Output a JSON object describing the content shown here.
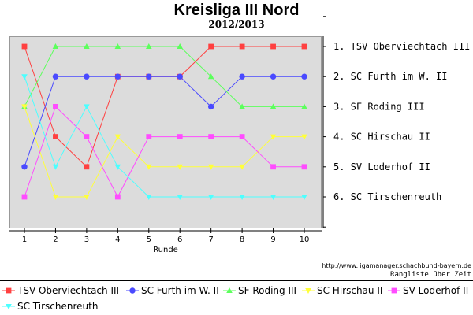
{
  "header": {
    "title": "Kreisliga III Nord",
    "subtitle": "2012/2013"
  },
  "footer": {
    "credit": "http://www.ligamanager.schachbund-bayern.de",
    "caption": "Rangliste über Zeit"
  },
  "colors": {
    "TSV Oberviechtach III": "#ff4040",
    "SC Furth im W. II": "#4a4aff",
    "SF Roding III": "#5cff5c",
    "SC Hirschau II": "#ffff3a",
    "SV Loderhof II": "#ff4cff",
    "SC Tirschenreuth": "#4cffff"
  },
  "chart_data": {
    "type": "line",
    "title": "Kreisliga III Nord",
    "subtitle": "2012/2013",
    "xlabel": "Runde",
    "ylabel": "",
    "x": [
      1,
      2,
      3,
      4,
      5,
      6,
      7,
      8,
      9,
      10
    ],
    "ylim": [
      7,
      0
    ],
    "y_inverted": true,
    "y_tick_labels": [
      "1. TSV Oberviechtach III",
      "2. SC Furth im W. II",
      "3. SF Roding III",
      "4. SC Hirschau II",
      "5. SV Loderhof II",
      "6. SC Tirschenreuth"
    ],
    "grid": false,
    "legend_position": "bottom",
    "series": [
      {
        "name": "TSV Oberviechtach III",
        "marker": "square",
        "values": [
          1,
          4,
          5,
          2,
          2,
          2,
          1,
          1,
          1,
          1
        ]
      },
      {
        "name": "SC Furth im W. II",
        "marker": "circle",
        "values": [
          5,
          2,
          2,
          2,
          2,
          2,
          3,
          2,
          2,
          2
        ]
      },
      {
        "name": "SF Roding III",
        "marker": "triangle-up",
        "values": [
          3,
          1,
          1,
          1,
          1,
          1,
          2,
          3,
          3,
          3
        ]
      },
      {
        "name": "SC Hirschau II",
        "marker": "triangle-down",
        "values": [
          3,
          6,
          6,
          4,
          5,
          5,
          5,
          5,
          4,
          4
        ]
      },
      {
        "name": "SV Loderhof II",
        "marker": "square",
        "values": [
          6,
          3,
          4,
          6,
          4,
          4,
          4,
          4,
          5,
          5
        ]
      },
      {
        "name": "SC Tirschenreuth",
        "marker": "triangle-down",
        "values": [
          2,
          5,
          3,
          5,
          6,
          6,
          6,
          6,
          6,
          6
        ]
      }
    ]
  }
}
